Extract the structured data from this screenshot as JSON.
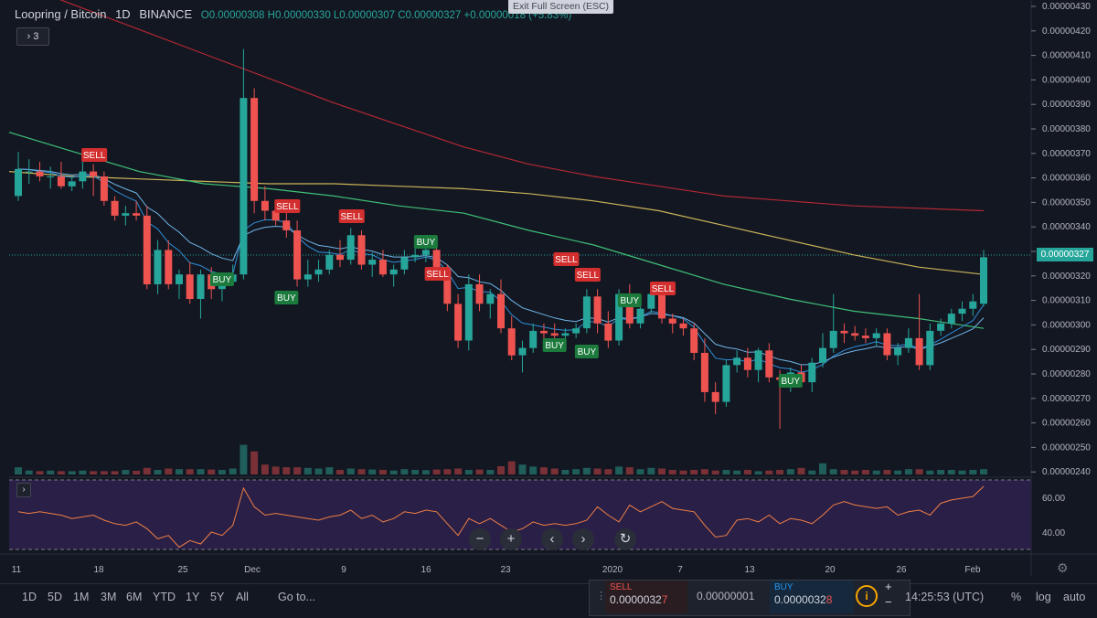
{
  "legend": {
    "symbol": "Loopring / Bitcoin",
    "interval": "1D",
    "exchange": "BINANCE",
    "ohlc": "O0.00000308 H0.00000330 L0.00000307 C0.00000327 +0.00000018 (+5.83%)"
  },
  "exit_fullscreen": "Exit Full Screen (ESC)",
  "indicators_toggle": "3",
  "collapse_indicator": "›",
  "current_price": "0.00000327",
  "price_axis": [
    "0.00000430",
    "0.00000420",
    "0.00000410",
    "0.00000400",
    "0.00000390",
    "0.00000380",
    "0.00000370",
    "0.00000360",
    "0.00000350",
    "0.00000340",
    "0.00000330",
    "0.00000320",
    "0.00000310",
    "0.00000300",
    "0.00000290",
    "0.00000280",
    "0.00000270",
    "0.00000260",
    "0.00000250",
    "0.00000240"
  ],
  "rsi_axis": [
    "60.00",
    "40.00"
  ],
  "time_axis": [
    "11",
    "18",
    "25",
    "Dec",
    "9",
    "16",
    "23",
    "2020",
    "7",
    "13",
    "20",
    "26",
    "Feb"
  ],
  "signals": [
    {
      "label": "SELL",
      "type": "sell"
    },
    {
      "label": "BUY",
      "type": "buy"
    },
    {
      "label": "SELL",
      "type": "sell"
    },
    {
      "label": "BUY",
      "type": "buy"
    },
    {
      "label": "SELL",
      "type": "sell"
    },
    {
      "label": "BUY",
      "type": "buy"
    },
    {
      "label": "SELL",
      "type": "sell"
    },
    {
      "label": "SELL",
      "type": "sell"
    },
    {
      "label": "SELL",
      "type": "sell"
    },
    {
      "label": "BUY",
      "type": "buy"
    },
    {
      "label": "BUY",
      "type": "buy"
    },
    {
      "label": "BUY",
      "type": "buy"
    },
    {
      "label": "SELL",
      "type": "sell"
    },
    {
      "label": "BUY",
      "type": "buy"
    }
  ],
  "nav": {
    "zoom_out": "−",
    "zoom_in": "+",
    "scroll_left": "‹",
    "scroll_right": "›",
    "reset": "↻"
  },
  "timeframes": [
    "1D",
    "5D",
    "1M",
    "3M",
    "6M",
    "YTD",
    "1Y",
    "5Y",
    "All"
  ],
  "goto_label": "Go to...",
  "trade": {
    "sell_label": "SELL",
    "sell_price_main": "0.0000032",
    "sell_price_last": "7",
    "spread": "0.00000001",
    "buy_label": "BUY",
    "buy_price_main": "0.0000032",
    "buy_price_last": "8",
    "info": "i",
    "plus": "+",
    "minus": "−"
  },
  "clock": "14:25:53 (UTC)",
  "scale_options": [
    "%",
    "log",
    "auto"
  ],
  "colors": {
    "up": "#26a69a",
    "down": "#ef5350",
    "bg": "#131722"
  },
  "chart_data": {
    "type": "candlestick",
    "title": "Loopring / Bitcoin 1D BINANCE",
    "ylim": [
      2.38e-06,
      4.32e-06
    ],
    "candles": [
      [
        3.52e-06,
        3.7e-06,
        3.5e-06,
        3.63e-06
      ],
      [
        3.62e-06,
        3.67e-06,
        3.57e-06,
        3.62e-06
      ],
      [
        3.62e-06,
        3.66e-06,
        3.58e-06,
        3.6e-06
      ],
      [
        3.6e-06,
        3.64e-06,
        3.55e-06,
        3.6e-06
      ],
      [
        3.6e-06,
        3.66e-06,
        3.55e-06,
        3.56e-06
      ],
      [
        3.56e-06,
        3.6e-06,
        3.54e-06,
        3.58e-06
      ],
      [
        3.58e-06,
        3.66e-06,
        3.55e-06,
        3.62e-06
      ],
      [
        3.62e-06,
        3.65e-06,
        3.52e-06,
        3.6e-06
      ],
      [
        3.6e-06,
        3.62e-06,
        3.48e-06,
        3.5e-06
      ],
      [
        3.5e-06,
        3.52e-06,
        3.42e-06,
        3.44e-06
      ],
      [
        3.44e-06,
        3.48e-06,
        3.4e-06,
        3.45e-06
      ],
      [
        3.45e-06,
        3.5e-06,
        3.42e-06,
        3.44e-06
      ],
      [
        3.44e-06,
        3.48e-06,
        3.14e-06,
        3.16e-06
      ],
      [
        3.16e-06,
        3.34e-06,
        3.12e-06,
        3.3e-06
      ],
      [
        3.3e-06,
        3.34e-06,
        3.14e-06,
        3.16e-06
      ],
      [
        3.16e-06,
        3.22e-06,
        3.1e-06,
        3.2e-06
      ],
      [
        3.2e-06,
        3.25e-06,
        3.08e-06,
        3.1e-06
      ],
      [
        3.1e-06,
        3.22e-06,
        3.02e-06,
        3.2e-06
      ],
      [
        3.2e-06,
        3.23e-06,
        3.1e-06,
        3.14e-06
      ],
      [
        3.14e-06,
        3.2e-06,
        3.09e-06,
        3.17e-06
      ],
      [
        3.17e-06,
        3.24e-06,
        3.16e-06,
        3.2e-06
      ],
      [
        3.2e-06,
        4.12e-06,
        3.18e-06,
        3.92e-06
      ],
      [
        3.92e-06,
        3.96e-06,
        3.45e-06,
        3.5e-06
      ],
      [
        3.5e-06,
        3.56e-06,
        3.42e-06,
        3.46e-06
      ],
      [
        3.46e-06,
        3.5e-06,
        3.4e-06,
        3.42e-06
      ],
      [
        3.42e-06,
        3.46e-06,
        3.35e-06,
        3.38e-06
      ],
      [
        3.38e-06,
        3.42e-06,
        3.15e-06,
        3.18e-06
      ],
      [
        3.18e-06,
        3.26e-06,
        3.15e-06,
        3.2e-06
      ],
      [
        3.2e-06,
        3.26e-06,
        3.17e-06,
        3.22e-06
      ],
      [
        3.22e-06,
        3.3e-06,
        3.2e-06,
        3.28e-06
      ],
      [
        3.28e-06,
        3.34e-06,
        3.23e-06,
        3.26e-06
      ],
      [
        3.26e-06,
        3.39e-06,
        3.24e-06,
        3.36e-06
      ],
      [
        3.36e-06,
        3.38e-06,
        3.22e-06,
        3.24e-06
      ],
      [
        3.24e-06,
        3.29e-06,
        3.19e-06,
        3.26e-06
      ],
      [
        3.26e-06,
        3.3e-06,
        3.19e-06,
        3.2e-06
      ],
      [
        3.2e-06,
        3.24e-06,
        3.15e-06,
        3.22e-06
      ],
      [
        3.22e-06,
        3.3e-06,
        3.2e-06,
        3.27e-06
      ],
      [
        3.27e-06,
        3.31e-06,
        3.25e-06,
        3.28e-06
      ],
      [
        3.28e-06,
        3.32e-06,
        3.25e-06,
        3.3e-06
      ],
      [
        3.3e-06,
        3.32e-06,
        3.2e-06,
        3.22e-06
      ],
      [
        3.22e-06,
        3.24e-06,
        3.05e-06,
        3.08e-06
      ],
      [
        3.08e-06,
        3.12e-06,
        2.9e-06,
        2.93e-06
      ],
      [
        2.93e-06,
        3.2e-06,
        2.89e-06,
        3.16e-06
      ],
      [
        3.16e-06,
        3.2e-06,
        3.05e-06,
        3.08e-06
      ],
      [
        3.08e-06,
        3.14e-06,
        3.02e-06,
        3.12e-06
      ],
      [
        3.12e-06,
        3.18e-06,
        2.96e-06,
        2.98e-06
      ],
      [
        2.98e-06,
        3.03e-06,
        2.85e-06,
        2.87e-06
      ],
      [
        2.87e-06,
        2.93e-06,
        2.8e-06,
        2.9e-06
      ],
      [
        2.9e-06,
        3e-06,
        2.88e-06,
        2.97e-06
      ],
      [
        2.97e-06,
        3e-06,
        2.92e-06,
        2.96e-06
      ],
      [
        2.96e-06,
        3e-06,
        2.93e-06,
        2.95e-06
      ],
      [
        2.95e-06,
        2.98e-06,
        2.92e-06,
        2.96e-06
      ],
      [
        2.96e-06,
        3e-06,
        2.94e-06,
        2.98e-06
      ],
      [
        2.98e-06,
        3.14e-06,
        2.96e-06,
        3.11e-06
      ],
      [
        3.11e-06,
        3.14e-06,
        2.96e-06,
        3e-06
      ],
      [
        3e-06,
        3.05e-06,
        2.9e-06,
        2.93e-06
      ],
      [
        2.93e-06,
        3.14e-06,
        2.91e-06,
        3.12e-06
      ],
      [
        3.12e-06,
        3.16e-06,
        2.98e-06,
        3e-06
      ],
      [
        3e-06,
        3.08e-06,
        2.98e-06,
        3.06e-06
      ],
      [
        3.06e-06,
        3.14e-06,
        3.04e-06,
        3.12e-06
      ],
      [
        3.12e-06,
        3.16e-06,
        3e-06,
        3.02e-06
      ],
      [
        3.02e-06,
        3.04e-06,
        2.96e-06,
        3e-06
      ],
      [
        3e-06,
        3.02e-06,
        2.95e-06,
        2.98e-06
      ],
      [
        2.98e-06,
        3e-06,
        2.85e-06,
        2.88e-06
      ],
      [
        2.88e-06,
        2.94e-06,
        2.68e-06,
        2.72e-06
      ],
      [
        2.72e-06,
        2.76e-06,
        2.63e-06,
        2.68e-06
      ],
      [
        2.68e-06,
        2.85e-06,
        2.66e-06,
        2.83e-06
      ],
      [
        2.83e-06,
        2.89e-06,
        2.8e-06,
        2.86e-06
      ],
      [
        2.86e-06,
        2.9e-06,
        2.78e-06,
        2.81e-06
      ],
      [
        2.81e-06,
        2.9e-06,
        2.76e-06,
        2.89e-06
      ],
      [
        2.89e-06,
        2.92e-06,
        2.76e-06,
        2.78e-06
      ],
      [
        2.78e-06,
        2.81e-06,
        2.57e-06,
        2.77e-06
      ],
      [
        2.77e-06,
        2.82e-06,
        2.72e-06,
        2.8e-06
      ],
      [
        2.8e-06,
        2.83e-06,
        2.74e-06,
        2.76e-06
      ],
      [
        2.76e-06,
        2.86e-06,
        2.72e-06,
        2.84e-06
      ],
      [
        2.84e-06,
        2.96e-06,
        2.82e-06,
        2.9e-06
      ],
      [
        2.9e-06,
        3.12e-06,
        2.88e-06,
        2.97e-06
      ],
      [
        2.97e-06,
        3e-06,
        2.92e-06,
        2.96e-06
      ],
      [
        2.96e-06,
        2.99e-06,
        2.93e-06,
        2.95e-06
      ],
      [
        2.95e-06,
        2.98e-06,
        2.92e-06,
        2.94e-06
      ],
      [
        2.94e-06,
        2.98e-06,
        2.91e-06,
        2.96e-06
      ],
      [
        2.96e-06,
        2.98e-06,
        2.85e-06,
        2.87e-06
      ],
      [
        2.87e-06,
        2.92e-06,
        2.83e-06,
        2.9e-06
      ],
      [
        2.9e-06,
        2.98e-06,
        2.88e-06,
        2.94e-06
      ],
      [
        2.94e-06,
        3.12e-06,
        2.81e-06,
        2.83e-06
      ],
      [
        2.83e-06,
        3e-06,
        2.81e-06,
        2.97e-06
      ],
      [
        2.97e-06,
        3.02e-06,
        2.95e-06,
        3e-06
      ],
      [
        3e-06,
        3.06e-06,
        2.98e-06,
        3.04e-06
      ],
      [
        3.04e-06,
        3.09e-06,
        3.01e-06,
        3.06e-06
      ],
      [
        3.06e-06,
        3.12e-06,
        3.03e-06,
        3.09e-06
      ],
      [
        3.08e-06,
        3.3e-06,
        3.07e-06,
        3.27e-06
      ]
    ],
    "volume": [
      22,
      12,
      10,
      12,
      10,
      10,
      12,
      10,
      10,
      10,
      14,
      11,
      20,
      14,
      18,
      16,
      16,
      16,
      15,
      14,
      18,
      90,
      70,
      30,
      24,
      22,
      22,
      20,
      18,
      22,
      14,
      18,
      16,
      15,
      14,
      12,
      16,
      14,
      13,
      15,
      16,
      18,
      14,
      15,
      14,
      25,
      40,
      30,
      24,
      22,
      18,
      14,
      16,
      20,
      18,
      16,
      24,
      22,
      16,
      20,
      18,
      14,
      12,
      14,
      16,
      12,
      14,
      12,
      14,
      10,
      12,
      14,
      16,
      20,
      12,
      34,
      16,
      14,
      12,
      14,
      12,
      14,
      12,
      16,
      16,
      12,
      14,
      14,
      12,
      14,
      16
    ],
    "rsi": [
      52,
      51,
      52,
      51,
      50,
      48,
      49,
      50,
      47,
      45,
      44,
      46,
      42,
      36,
      38,
      31,
      35,
      33,
      40,
      38,
      44,
      66,
      55,
      50,
      51,
      50,
      49,
      48,
      47,
      49,
      50,
      53,
      48,
      50,
      46,
      48,
      52,
      51,
      53,
      52,
      45,
      38,
      48,
      45,
      48,
      44,
      40,
      42,
      46,
      44,
      45,
      44,
      45,
      47,
      55,
      50,
      46,
      56,
      52,
      55,
      58,
      54,
      53,
      52,
      44,
      37,
      38,
      47,
      48,
      46,
      50,
      45,
      48,
      47,
      45,
      50,
      56,
      58,
      56,
      55,
      54,
      55,
      50,
      52,
      53,
      50,
      57,
      59,
      60,
      61,
      67
    ],
    "ma_slow": [
      4.4e-06,
      4.3e-06,
      4.2e-06,
      4.1e-06,
      4e-06,
      3.9e-06,
      3.81e-06,
      3.72e-06,
      3.65e-06,
      3.6e-06,
      3.56e-06,
      3.52e-06,
      3.5e-06,
      3.48e-06,
      3.47e-06,
      3.46e-06
    ],
    "ma_yellow": [
      3.62e-06,
      3.6e-06,
      3.59e-06,
      3.58e-06,
      3.57e-06,
      3.57e-06,
      3.56e-06,
      3.55e-06,
      3.53e-06,
      3.5e-06,
      3.46e-06,
      3.4e-06,
      3.34e-06,
      3.28e-06,
      3.23e-06,
      3.2e-06
    ],
    "ma_green": [
      3.78e-06,
      3.7e-06,
      3.62e-06,
      3.57e-06,
      3.55e-06,
      3.52e-06,
      3.48e-06,
      3.45e-06,
      3.38e-06,
      3.32e-06,
      3.24e-06,
      3.16e-06,
      3.1e-06,
      3.05e-06,
      3.02e-06,
      2.98e-06
    ]
  }
}
